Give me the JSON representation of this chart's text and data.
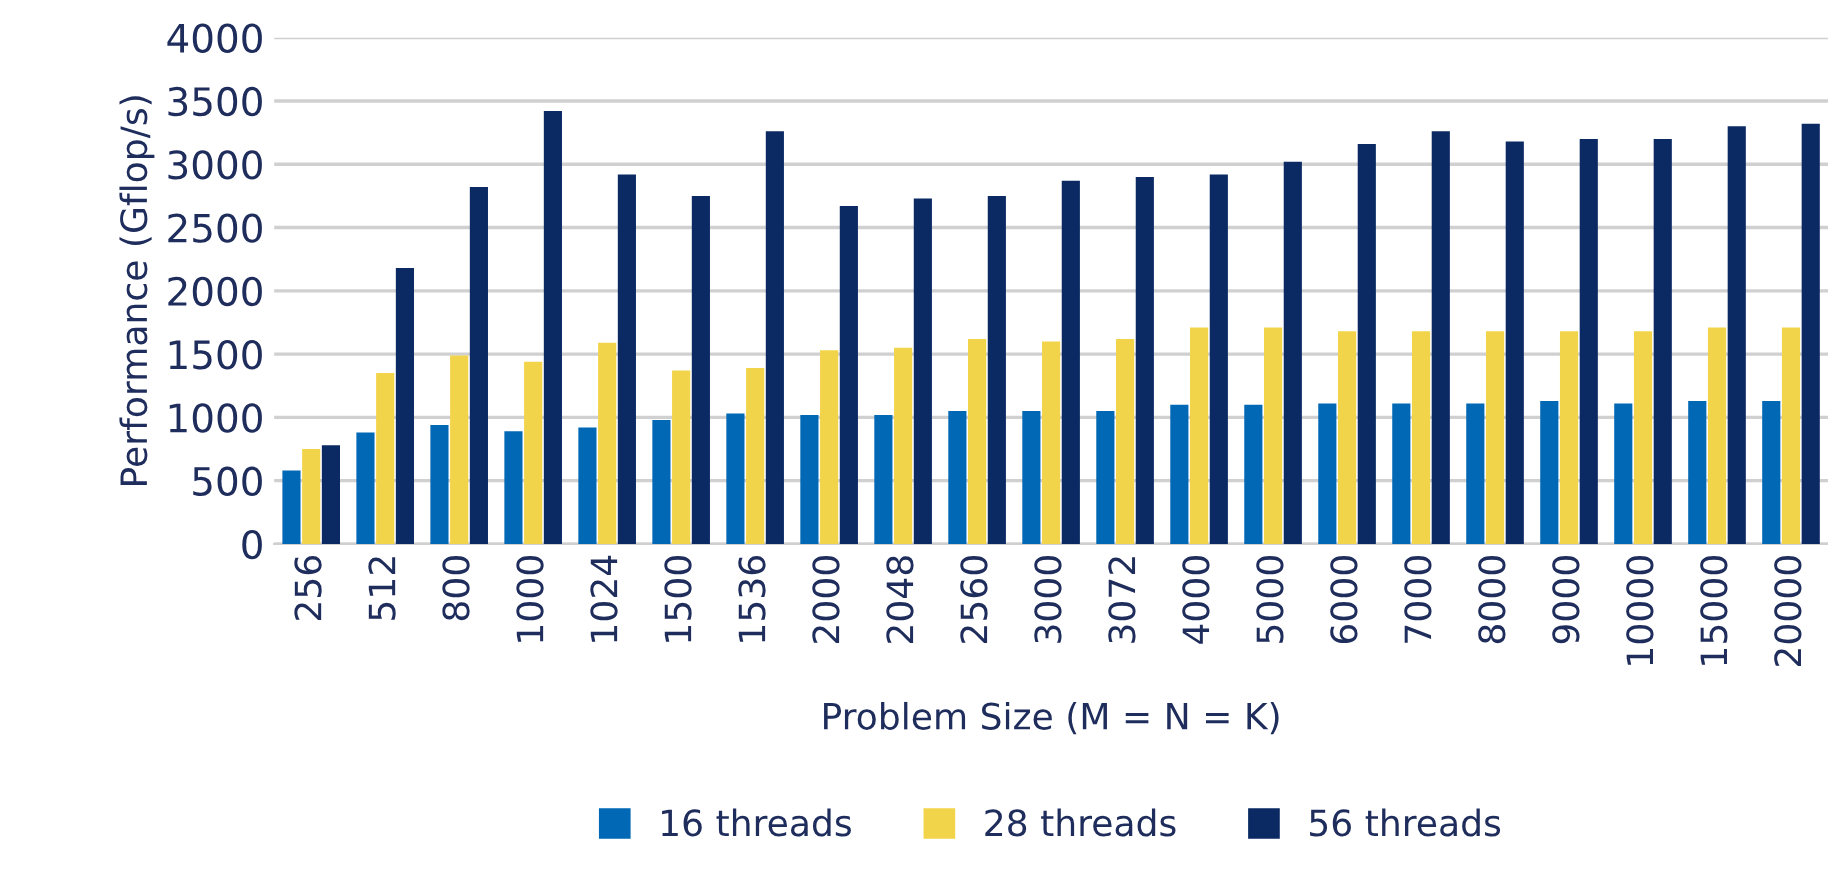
{
  "chart_data": {
    "type": "bar",
    "xlabel": "Problem Size (M = N = K)",
    "ylabel": "Performance (Gflop/s)",
    "categories": [
      "256",
      "512",
      "800",
      "1000",
      "1024",
      "1500",
      "1536",
      "2000",
      "2048",
      "2560",
      "3000",
      "3072",
      "4000",
      "5000",
      "6000",
      "7000",
      "8000",
      "9000",
      "10000",
      "15000",
      "20000"
    ],
    "series": [
      {
        "name": "16 threads",
        "color": "#0068b5",
        "values": [
          580,
          880,
          940,
          890,
          920,
          980,
          1030,
          1020,
          1020,
          1050,
          1050,
          1050,
          1100,
          1100,
          1110,
          1110,
          1110,
          1130,
          1110,
          1130,
          1130
        ]
      },
      {
        "name": "28 threads",
        "color": "#f2d44a",
        "values": [
          750,
          1350,
          1490,
          1440,
          1590,
          1370,
          1390,
          1530,
          1550,
          1620,
          1600,
          1620,
          1710,
          1710,
          1680,
          1680,
          1680,
          1680,
          1680,
          1710,
          1710
        ]
      },
      {
        "name": "56 threads",
        "color": "#0b2a64",
        "values": [
          780,
          2180,
          2820,
          3420,
          2920,
          2750,
          3260,
          2670,
          2730,
          2750,
          2870,
          2900,
          2920,
          3020,
          3160,
          3260,
          3180,
          3200,
          3200,
          3300,
          3320
        ]
      }
    ],
    "ylim": [
      0,
      4000
    ],
    "yticks": [
      0,
      500,
      1000,
      1500,
      2000,
      2500,
      3000,
      3500,
      4000
    ],
    "grid": "y",
    "legend": "bottom"
  }
}
